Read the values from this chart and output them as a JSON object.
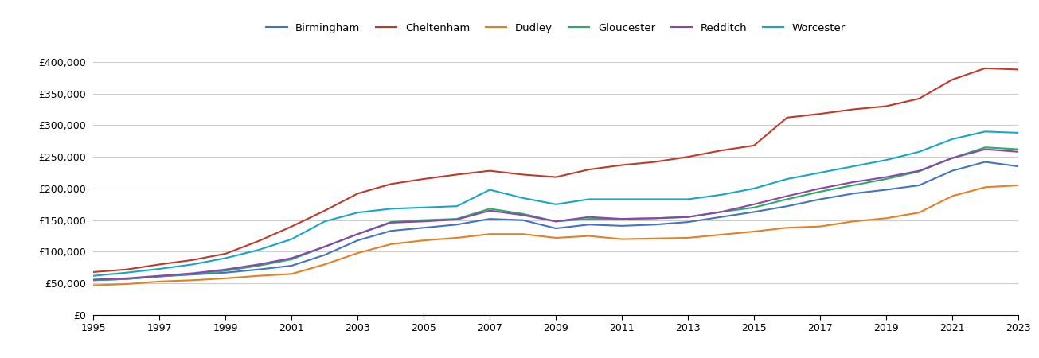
{
  "years": [
    1995,
    1996,
    1997,
    1998,
    1999,
    2000,
    2001,
    2002,
    2003,
    2004,
    2005,
    2006,
    2007,
    2008,
    2009,
    2010,
    2011,
    2012,
    2013,
    2014,
    2015,
    2016,
    2017,
    2018,
    2019,
    2020,
    2021,
    2022,
    2023
  ],
  "Birmingham": [
    55000,
    57000,
    61000,
    64000,
    67000,
    72000,
    78000,
    95000,
    118000,
    133000,
    138000,
    143000,
    152000,
    150000,
    137000,
    143000,
    141000,
    143000,
    147000,
    155000,
    163000,
    172000,
    183000,
    192000,
    198000,
    205000,
    228000,
    242000,
    235000
  ],
  "Cheltenham": [
    68000,
    72000,
    80000,
    87000,
    97000,
    117000,
    140000,
    165000,
    192000,
    207000,
    215000,
    222000,
    228000,
    222000,
    218000,
    230000,
    237000,
    242000,
    250000,
    260000,
    268000,
    312000,
    318000,
    325000,
    330000,
    342000,
    372000,
    390000,
    388000
  ],
  "Dudley": [
    47000,
    49000,
    53000,
    55000,
    58000,
    62000,
    65000,
    80000,
    98000,
    112000,
    118000,
    122000,
    128000,
    128000,
    122000,
    125000,
    120000,
    121000,
    122000,
    127000,
    132000,
    138000,
    140000,
    148000,
    153000,
    162000,
    188000,
    202000,
    205000
  ],
  "Gloucester": [
    55000,
    57000,
    61000,
    65000,
    70000,
    78000,
    88000,
    108000,
    128000,
    147000,
    150000,
    152000,
    168000,
    160000,
    148000,
    152000,
    152000,
    153000,
    155000,
    163000,
    170000,
    183000,
    195000,
    205000,
    215000,
    227000,
    248000,
    265000,
    262000
  ],
  "Redditch": [
    56000,
    58000,
    62000,
    66000,
    72000,
    80000,
    90000,
    108000,
    128000,
    146000,
    148000,
    151000,
    165000,
    158000,
    148000,
    155000,
    152000,
    153000,
    155000,
    163000,
    175000,
    188000,
    200000,
    210000,
    218000,
    228000,
    248000,
    262000,
    258000
  ],
  "Worcester": [
    62000,
    67000,
    73000,
    80000,
    90000,
    103000,
    120000,
    148000,
    162000,
    168000,
    170000,
    172000,
    198000,
    185000,
    175000,
    183000,
    183000,
    183000,
    183000,
    190000,
    200000,
    215000,
    225000,
    235000,
    245000,
    258000,
    278000,
    290000,
    288000
  ],
  "colors": {
    "Birmingham": "#4472c4",
    "Cheltenham": "#c0392b",
    "Dudley": "#e67e22",
    "Gloucester": "#27ae60",
    "Redditch": "#8e44ad",
    "Worcester": "#17a5c8"
  },
  "ylim": [
    0,
    430000
  ],
  "yticks": [
    0,
    50000,
    100000,
    150000,
    200000,
    250000,
    300000,
    350000,
    400000
  ],
  "xlim": [
    1995,
    2023
  ],
  "xticks": [
    1995,
    1997,
    1999,
    2001,
    2003,
    2005,
    2007,
    2009,
    2011,
    2013,
    2015,
    2017,
    2019,
    2021,
    2023
  ],
  "background_color": "#ffffff",
  "grid_color": "#cccccc",
  "series_order": [
    "Birmingham",
    "Cheltenham",
    "Dudley",
    "Gloucester",
    "Redditch",
    "Worcester"
  ]
}
